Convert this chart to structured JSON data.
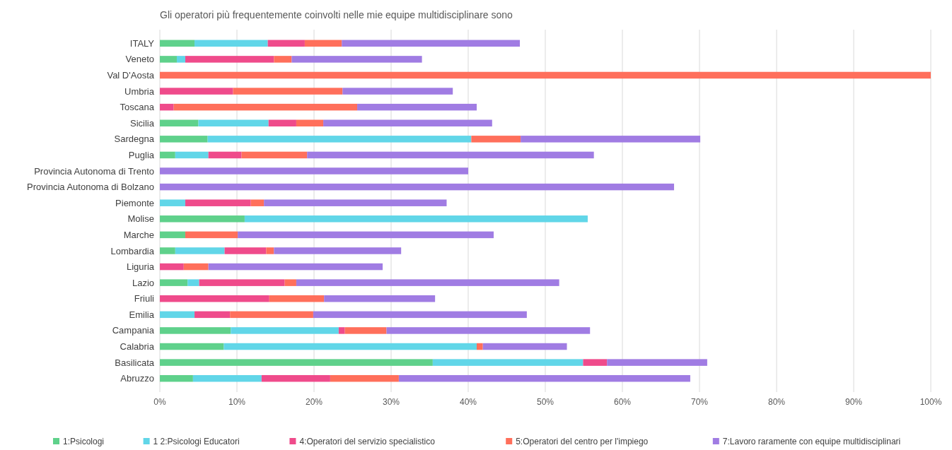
{
  "chart_data": {
    "type": "bar",
    "orientation": "horizontal",
    "stacked": true,
    "title": "Gli operatori più frequentemente coinvolti nelle mie equipe multidisciplinare sono",
    "categories": [
      "ITALY",
      "Veneto",
      "Val D'Aosta",
      "Umbria",
      "Toscana",
      "Sicilia",
      "Sardegna",
      "Puglia",
      "Provincia Autonoma di Trento",
      "Provincia Autonoma di Bolzano",
      "Piemonte",
      "Molise",
      "Marche",
      "Lombardia",
      "Liguria",
      "Lazio",
      "Friuli",
      "Emilia",
      "Campania",
      "Calabria",
      "Basilicata",
      "Abruzzo"
    ],
    "series": [
      {
        "name": "1:Psicologi",
        "color": "#5fd18b",
        "values": [
          4.5,
          2.2,
          0,
          0,
          0,
          5.0,
          6.2,
          2.0,
          0,
          0,
          0,
          11.0,
          3.3,
          2.0,
          0,
          3.6,
          0,
          0,
          9.2,
          8.3,
          35.4,
          4.3
        ]
      },
      {
        "name": "1 2:Psicologi Educatori",
        "color": "#61d6e8",
        "values": [
          9.5,
          1.1,
          0,
          0,
          0,
          9.1,
          34.2,
          4.3,
          0,
          0,
          3.3,
          44.5,
          0,
          6.4,
          0,
          1.5,
          0,
          4.5,
          14.0,
          32.8,
          19.5,
          8.9
        ]
      },
      {
        "name": "4:Operatori del servizio specialistico",
        "color": "#ef4b8b",
        "values": [
          4.8,
          11.5,
          0,
          9.5,
          1.8,
          3.6,
          0,
          4.3,
          0,
          0,
          8.5,
          0,
          0,
          5.4,
          3.1,
          11.1,
          14.2,
          4.6,
          0.8,
          0,
          3.1,
          8.9
        ]
      },
      {
        "name": "5:Operatori del centro per l'impiego",
        "color": "#ff6f5b",
        "values": [
          4.8,
          2.3,
          100,
          14.2,
          23.8,
          3.5,
          6.4,
          8.5,
          0,
          0,
          1.7,
          0,
          6.8,
          1.0,
          3.2,
          1.5,
          7.1,
          10.8,
          5.4,
          0.8,
          0,
          8.9
        ]
      },
      {
        "name": "7:Lavoro raramente con equipe multidisciplinari",
        "color": "#a07ce3",
        "values": [
          23.1,
          16.9,
          0,
          14.3,
          15.5,
          21.9,
          23.3,
          37.2,
          40.0,
          66.7,
          23.7,
          0,
          33.2,
          16.5,
          22.6,
          34.1,
          14.4,
          27.7,
          26.4,
          10.9,
          13.0,
          37.8
        ]
      }
    ],
    "xlim": [
      0,
      100
    ],
    "xticks": [
      {
        "value": 0,
        "label": "0%"
      },
      {
        "value": 10,
        "label": "10%"
      },
      {
        "value": 20,
        "label": "20%"
      },
      {
        "value": 30,
        "label": "30%"
      },
      {
        "value": 40,
        "label": "40%"
      },
      {
        "value": 50,
        "label": "50%"
      },
      {
        "value": 60,
        "label": "60%"
      },
      {
        "value": 70,
        "label": "70%"
      },
      {
        "value": 80,
        "label": "80%"
      },
      {
        "value": 90,
        "label": "90%"
      },
      {
        "value": 100,
        "label": "100%"
      }
    ],
    "grid": "x",
    "legend": "bottom"
  }
}
